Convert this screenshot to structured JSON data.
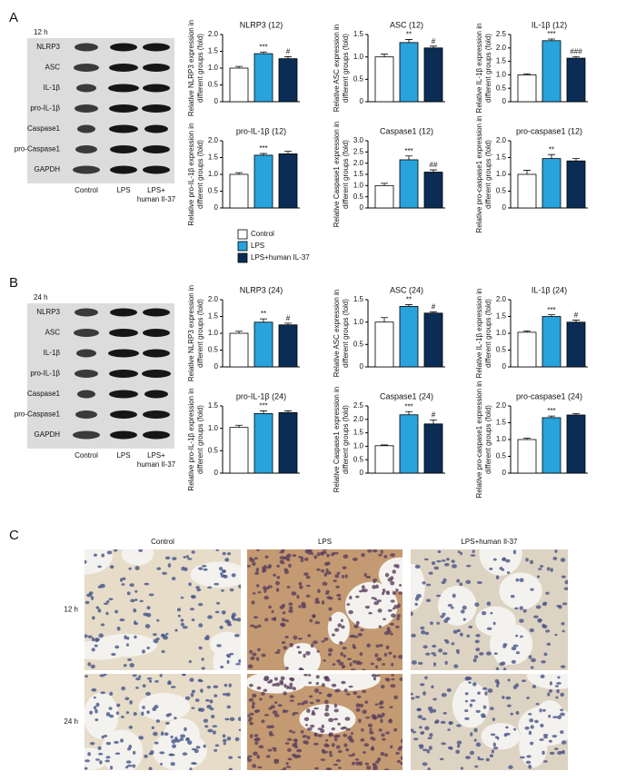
{
  "panels": [
    "A",
    "B",
    "C"
  ],
  "legend": {
    "names": [
      "Control",
      "LPS",
      "LPS+human IL-37"
    ],
    "colors": [
      "#ffffff",
      "#29a3dc",
      "#0b2d55"
    ]
  },
  "blots": [
    {
      "time": "12 h",
      "rows": [
        "NLRP3",
        "ASC",
        "IL-1β",
        "pro-IL-1β",
        "Caspase1",
        "pro-Caspase1",
        "GAPDH"
      ],
      "columns": [
        [
          "Control"
        ],
        [
          "LPS"
        ],
        [
          "LPS+",
          "human Il-37"
        ]
      ]
    },
    {
      "time": "24 h",
      "rows": [
        "NLRP3",
        "ASC",
        "IL-1β",
        "pro-IL-1β",
        "Caspase1",
        "pro-Caspase1",
        "GAPDH"
      ],
      "columns": [
        [
          "Control"
        ],
        [
          "LPS"
        ],
        [
          "LPS+",
          "human Il-37"
        ]
      ]
    }
  ],
  "histology": {
    "columns": [
      "Control",
      "LPS",
      "LPS+human Il-37"
    ],
    "rows": [
      "12 h",
      "24 h"
    ]
  },
  "chart_data": [
    {
      "type": "bar",
      "title": "NLRP3 (12)",
      "y_label": [
        "Relative NLRP3 expression in",
        "different groups (fold)"
      ],
      "values": [
        1.0,
        1.43,
        1.28
      ],
      "errors": [
        0.05,
        0.05,
        0.06
      ],
      "annotations": [
        null,
        "***",
        "#"
      ],
      "ylim": [
        0,
        2
      ],
      "yticks": [
        0,
        0.5,
        {
          "value": 1,
          "label": "1.0"
        },
        1.5,
        {
          "value": 2,
          "label": "2.0"
        }
      ]
    },
    {
      "type": "bar",
      "title": "ASC (12)",
      "y_label": [
        "Relative ASC expression in",
        "different groups (fold)"
      ],
      "values": [
        1.0,
        1.32,
        1.2
      ],
      "errors": [
        0.06,
        0.07,
        0.04
      ],
      "annotations": [
        null,
        "**",
        "#"
      ],
      "ylim": [
        0,
        1.5
      ],
      "yticks": [
        0,
        0.5,
        {
          "value": 1,
          "label": "1.0"
        },
        1.5
      ]
    },
    {
      "type": "bar",
      "title": "IL-1β (12)",
      "y_label": [
        "Relative IL-1β expression in",
        "different groups (fold)"
      ],
      "values": [
        1.0,
        2.27,
        1.62
      ],
      "errors": [
        0.04,
        0.06,
        0.06
      ],
      "annotations": [
        null,
        "***",
        "###"
      ],
      "ylim": [
        0,
        2.5
      ],
      "yticks": [
        0,
        0.5,
        {
          "value": 1,
          "label": "1.0"
        },
        1.5,
        {
          "value": 2,
          "label": "2.0"
        },
        2.5
      ]
    },
    {
      "type": "bar",
      "title": "pro-IL-1β (12)",
      "y_label": [
        "Relative pro-IL-1β expression in",
        "different groups (fold)"
      ],
      "values": [
        1.0,
        1.57,
        1.61
      ],
      "errors": [
        0.05,
        0.05,
        0.08
      ],
      "annotations": [
        null,
        "***",
        null
      ],
      "ylim": [
        0,
        2
      ],
      "yticks": [
        0,
        0.5,
        {
          "value": 1,
          "label": "1.0"
        },
        1.5,
        {
          "value": 2,
          "label": "2.0"
        }
      ]
    },
    {
      "type": "bar",
      "title": "Caspase1 (12)",
      "y_label": [
        "Relative Caspase1 expression in",
        "different groups (fold)"
      ],
      "values": [
        1.0,
        2.15,
        1.6
      ],
      "errors": [
        0.1,
        0.17,
        0.1
      ],
      "annotations": [
        null,
        "***",
        "##"
      ],
      "ylim": [
        0,
        3
      ],
      "yticks": [
        0,
        0.5,
        {
          "value": 1,
          "label": "1.0"
        },
        1.5,
        {
          "value": 2,
          "label": "2.0"
        },
        2.5,
        {
          "value": 3,
          "label": "3.0"
        }
      ]
    },
    {
      "type": "bar",
      "title": "pro-caspase1 (12)",
      "y_label": [
        "Relative pro-caspase1 expression in",
        "different groups (fold)"
      ],
      "values": [
        1.0,
        1.47,
        1.4
      ],
      "errors": [
        0.12,
        0.12,
        0.07
      ],
      "annotations": [
        null,
        "**",
        null
      ],
      "ylim": [
        0,
        2
      ],
      "yticks": [
        0,
        0.5,
        {
          "value": 1,
          "label": "1.0"
        },
        1.5,
        {
          "value": 2,
          "label": "2.0"
        }
      ]
    },
    {
      "type": "bar",
      "title": "NLRP3 (24)",
      "y_label": [
        "Relative NLRP3 expression in",
        "different groups (fold)"
      ],
      "values": [
        1.0,
        1.33,
        1.25
      ],
      "errors": [
        0.06,
        0.1,
        0.05
      ],
      "annotations": [
        null,
        "**",
        "#"
      ],
      "ylim": [
        0,
        2
      ],
      "yticks": [
        0,
        0.5,
        {
          "value": 1,
          "label": "1.0"
        },
        1.5,
        {
          "value": 2,
          "label": "2.0"
        }
      ]
    },
    {
      "type": "bar",
      "title": "ASC (24)",
      "y_label": [
        "Relative ASC expression in",
        "different groups (fold)"
      ],
      "values": [
        1.0,
        1.35,
        1.2
      ],
      "errors": [
        0.1,
        0.04,
        0.03
      ],
      "annotations": [
        null,
        "**",
        "#"
      ],
      "ylim": [
        0,
        1.5
      ],
      "yticks": [
        0,
        0.5,
        {
          "value": 1,
          "label": "1.0"
        },
        1.5
      ]
    },
    {
      "type": "bar",
      "title": "IL-1β (24)",
      "y_label": [
        "Relative IL-1β expression in",
        "different groups (fold)"
      ],
      "values": [
        1.03,
        1.5,
        1.33
      ],
      "errors": [
        0.04,
        0.05,
        0.06
      ],
      "annotations": [
        null,
        "***",
        "#"
      ],
      "ylim": [
        0,
        2
      ],
      "yticks": [
        0,
        0.5,
        {
          "value": 1,
          "label": "1.0"
        },
        1.5,
        {
          "value": 2,
          "label": "2.0"
        }
      ]
    },
    {
      "type": "bar",
      "title": "pro-IL-1β (24)",
      "y_label": [
        "Relative pro-IL-1β expression in",
        "different groups (fold)"
      ],
      "values": [
        1.02,
        1.33,
        1.35
      ],
      "errors": [
        0.05,
        0.06,
        0.04
      ],
      "annotations": [
        null,
        "***",
        null
      ],
      "ylim": [
        0,
        1.5
      ],
      "yticks": [
        0,
        0.5,
        {
          "value": 1,
          "label": "1.0"
        },
        1.5
      ]
    },
    {
      "type": "bar",
      "title": "Caspase1 (24)",
      "y_label": [
        "Relative Caspase1 expression in",
        "different groups (fold)"
      ],
      "values": [
        1.02,
        2.17,
        1.83
      ],
      "errors": [
        0.03,
        0.12,
        0.15
      ],
      "annotations": [
        null,
        "***",
        "#"
      ],
      "ylim": [
        0,
        2.5
      ],
      "yticks": [
        0,
        0.5,
        {
          "value": 1,
          "label": "1.0"
        },
        1.5,
        {
          "value": 2,
          "label": "2.0"
        },
        2.5
      ]
    },
    {
      "type": "bar",
      "title": "pro-caspase1 (24)",
      "y_label": [
        "Relative pro-caspase1 expression in",
        "different groups (fold)"
      ],
      "values": [
        1.0,
        1.65,
        1.73
      ],
      "errors": [
        0.04,
        0.05,
        0.04
      ],
      "annotations": [
        null,
        "***",
        null
      ],
      "ylim": [
        0,
        2
      ],
      "yticks": [
        0,
        0.5,
        {
          "value": 1,
          "label": "1.0"
        },
        1.5,
        {
          "value": 2,
          "label": "2.0"
        }
      ]
    }
  ]
}
